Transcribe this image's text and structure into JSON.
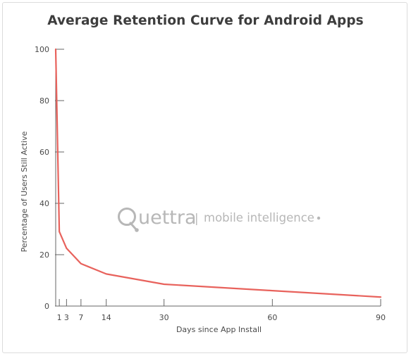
{
  "chart_data": {
    "type": "line",
    "title": "Average Retention Curve for Android Apps",
    "xlabel": "Days since App Install",
    "ylabel": "Percentage of Users Still Active",
    "xlim": [
      0,
      90
    ],
    "ylim": [
      0,
      100
    ],
    "x_ticks": [
      1,
      3,
      7,
      14,
      30,
      60,
      90
    ],
    "y_ticks": [
      0,
      20,
      40,
      60,
      80,
      100
    ],
    "grid": false,
    "series": [
      {
        "color": "#e8625c",
        "points": [
          {
            "x": 0,
            "y": 100
          },
          {
            "x": 1,
            "y": 29
          },
          {
            "x": 3,
            "y": 22.5
          },
          {
            "x": 7,
            "y": 16.5
          },
          {
            "x": 14,
            "y": 12.5
          },
          {
            "x": 30,
            "y": 8.5
          },
          {
            "x": 60,
            "y": 6
          },
          {
            "x": 90,
            "y": 3.5
          }
        ]
      }
    ]
  },
  "watermark": {
    "brand": "uettra",
    "divider": "|",
    "tagline": "mobile intelligence",
    "dot": "."
  },
  "colors": {
    "line": "#e8625c",
    "axis": "#666666",
    "watermark": "#b7b7b7"
  }
}
